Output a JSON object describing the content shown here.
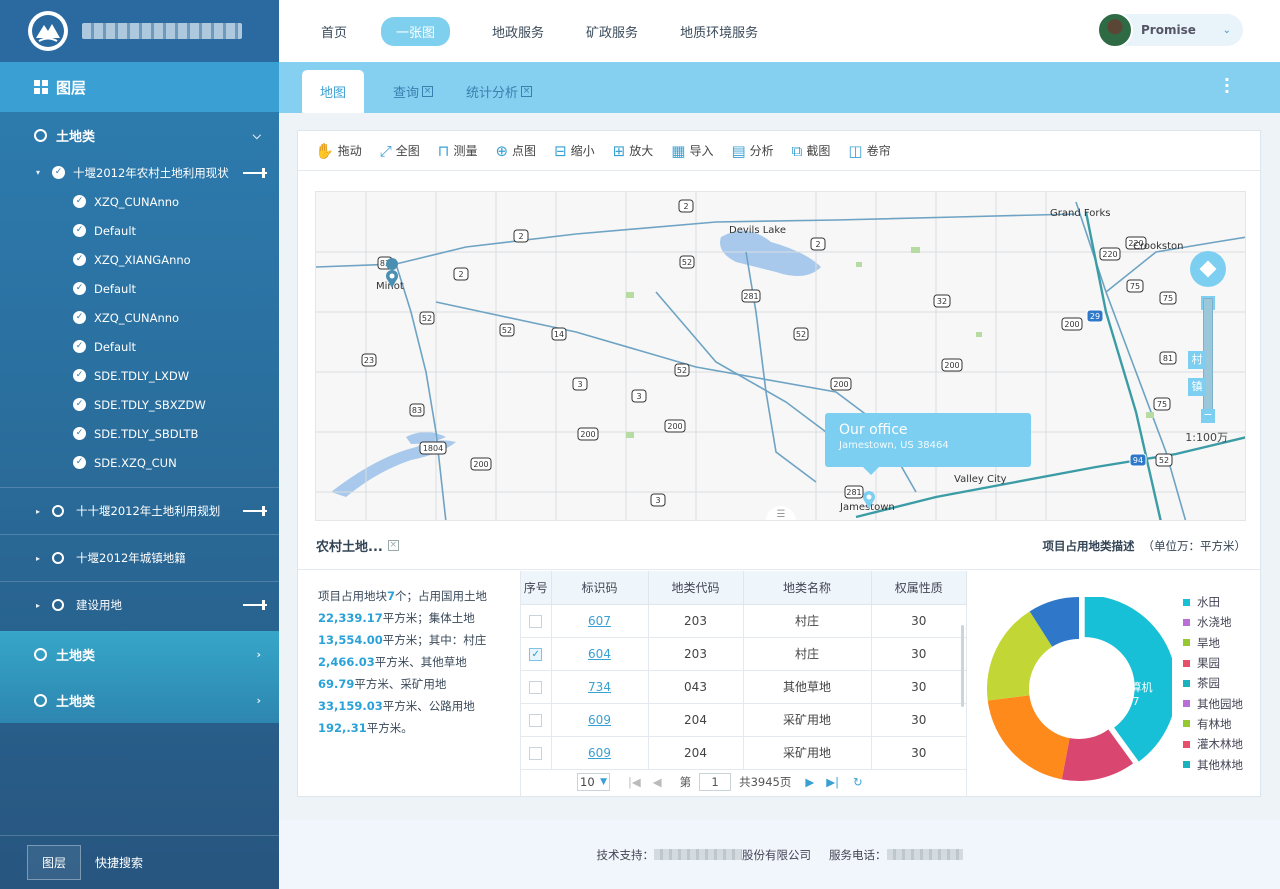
{
  "top_nav": {
    "items": [
      "首页",
      "一张图",
      "地政服务",
      "矿政服务",
      "地质环境服务"
    ],
    "active_index": 1
  },
  "user": {
    "name": "Promise"
  },
  "sidebar": {
    "header": "图层",
    "group1": {
      "label": "土地类",
      "sub": {
        "label": "十堰2012年农村土地利用现状",
        "layers": [
          "XZQ_CUNAnno",
          "Default",
          "XZQ_XIANGAnno",
          "Default",
          "XZQ_CUNAnno",
          "Default",
          "SDE.TDLY_LXDW",
          "SDE.TDLY_SBXZDW",
          "SDE.TDLY_SBDLTB",
          "SDE.XZQ_CUN"
        ]
      },
      "others": [
        "十十堰2012年土地利用规划",
        "十堰2012年城镇地籍",
        "建设用地"
      ]
    },
    "group2": {
      "label": "土地类"
    },
    "group3": {
      "label": "土地类"
    },
    "bottom_tabs": [
      "图层",
      "快捷搜索"
    ]
  },
  "tabs": {
    "items": [
      "地图",
      "查询",
      "统计分析"
    ],
    "close_glyph": "×"
  },
  "toolbar": {
    "tools": [
      {
        "icon": "hand-icon",
        "label": "拖动"
      },
      {
        "icon": "fullextent-icon",
        "label": "全图"
      },
      {
        "icon": "measure-icon",
        "label": "测量"
      },
      {
        "icon": "point-icon",
        "label": "点图"
      },
      {
        "icon": "zoom-out-icon",
        "label": "缩小"
      },
      {
        "icon": "zoom-in-icon",
        "label": "放大"
      },
      {
        "icon": "import-icon",
        "label": "导入"
      },
      {
        "icon": "analysis-icon",
        "label": "分析"
      },
      {
        "icon": "screenshot-icon",
        "label": "截图"
      },
      {
        "icon": "swipe-icon",
        "label": "卷帘"
      }
    ]
  },
  "map": {
    "popup_title": "Our office",
    "popup_subtitle": "Jamestown, US 38464",
    "scale": "1:100万",
    "badges": [
      "村",
      "镇"
    ],
    "labels": {
      "minot": "Minot",
      "devils_lake": "Devils Lake",
      "grand_forks": "Grand Forks",
      "crookston": "Crookston",
      "jamestown": "Jamestown",
      "valley_city": "Valley City"
    },
    "road_shields": [
      "83",
      "2",
      "2",
      "2",
      "2",
      "52",
      "14",
      "52",
      "3",
      "3",
      "52",
      "23",
      "83",
      "1804",
      "200",
      "200",
      "200",
      "200",
      "281",
      "281",
      "32",
      "200",
      "200",
      "220",
      "220",
      "75",
      "75",
      "81",
      "75",
      "52",
      "3",
      "29",
      "94",
      "52",
      "52",
      "2",
      "3"
    ]
  },
  "section": {
    "title": "农村土地...",
    "right_label": "项目占用地类描述",
    "unit": "（单位万：平方米）"
  },
  "summary": {
    "p1": "项目占用地块",
    "blocks": "7",
    "p2": "个；占用国用土地",
    "state_area": "22,339.17",
    "p3": "平方米；集体土地",
    "collective_area": "13,554.00",
    "p4": "平方米；其中：村庄",
    "village": "2,466.03",
    "p5": "平方米、其他草地",
    "grass": "69.79",
    "p6": "平方米、采矿用地",
    "mining": "33,159.03",
    "p7": "平方米、公路用地",
    "road": "192,.31",
    "p8": "平方米。"
  },
  "table": {
    "headers": [
      "序号",
      "标识码",
      "地类代码",
      "地类名称",
      "权属性质"
    ],
    "rows": [
      {
        "checked": false,
        "id": "607",
        "code": "203",
        "name": "村庄",
        "ownership": "30"
      },
      {
        "checked": true,
        "id": "604",
        "code": "203",
        "name": "村庄",
        "ownership": "30"
      },
      {
        "checked": false,
        "id": "734",
        "code": "043",
        "name": "其他草地",
        "ownership": "30"
      },
      {
        "checked": false,
        "id": "609",
        "code": "204",
        "name": "采矿用地",
        "ownership": "30"
      },
      {
        "checked": false,
        "id": "609",
        "code": "204",
        "name": "采矿用地",
        "ownership": "30"
      }
    ],
    "pager": {
      "page_size": "10",
      "page_label": "第",
      "page": "1",
      "total": "共3945页"
    }
  },
  "chart_data": {
    "type": "pie",
    "center_label": "计算机",
    "center_value": "7",
    "slices": [
      {
        "name": "水田",
        "value": 40,
        "color": "#17c0d6"
      },
      {
        "name": "茶园",
        "value": 13,
        "color": "#d9466f"
      },
      {
        "name": "旱地",
        "value": 20,
        "color": "#ff8a1c"
      },
      {
        "name": "水浇地",
        "value": 18,
        "color": "#c2d636"
      },
      {
        "name": "果园",
        "value": 9,
        "color": "#2f78c9"
      }
    ],
    "legend": [
      {
        "name": "水田",
        "color": "#17c0d6"
      },
      {
        "name": "水浇地",
        "color": "#b96fd6"
      },
      {
        "name": "旱地",
        "color": "#96c832"
      },
      {
        "name": "果园",
        "color": "#e84f6b"
      },
      {
        "name": "茶园",
        "color": "#18b3bf"
      },
      {
        "name": "其他园地",
        "color": "#b96fd6"
      },
      {
        "name": "有林地",
        "color": "#96c832"
      },
      {
        "name": "灌木林地",
        "color": "#e84f6b"
      },
      {
        "name": "其他林地",
        "color": "#18b3bf"
      }
    ]
  },
  "footer": {
    "support_label": "技术支持：",
    "company_suffix": "股份有限公司",
    "phone_label": "服务电话："
  }
}
